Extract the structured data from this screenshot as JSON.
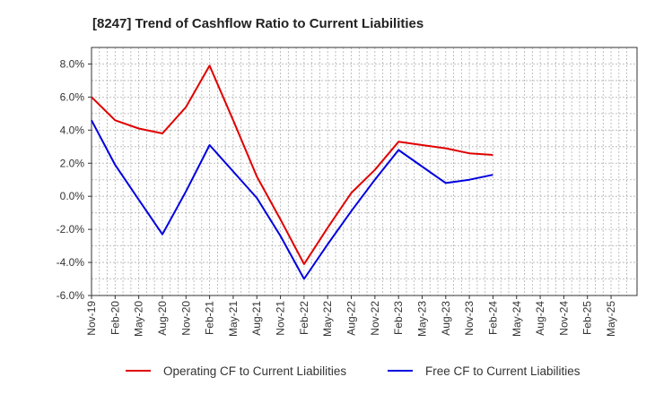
{
  "chart_data": {
    "type": "line",
    "title": "[8247]  Trend of Cashflow Ratio to Current Liabilities",
    "xlabel": "",
    "ylabel": "",
    "categories": [
      "Nov-19",
      "Feb-20",
      "May-20",
      "Aug-20",
      "Nov-20",
      "Feb-21",
      "May-21",
      "Aug-21",
      "Nov-21",
      "Feb-22",
      "May-22",
      "Aug-22",
      "Nov-22",
      "Feb-23",
      "May-23",
      "Aug-23",
      "Nov-23",
      "Feb-24",
      "May-24",
      "Aug-24",
      "Nov-24",
      "Feb-25",
      "May-25"
    ],
    "y_ticks": [
      "8.0%",
      "6.0%",
      "4.0%",
      "2.0%",
      "0.0%",
      "-2.0%",
      "-4.0%",
      "-6.0%"
    ],
    "y_tick_values": [
      8,
      6,
      4,
      2,
      0,
      -2,
      -4,
      -6
    ],
    "ylim": [
      -6,
      9
    ],
    "grid": true,
    "legend_position": "bottom",
    "series": [
      {
        "name": "Operating CF to Current Liabilities",
        "color": "#e00000",
        "values": [
          6.0,
          4.6,
          4.1,
          3.8,
          5.4,
          7.9,
          4.6,
          1.2,
          -1.4,
          -4.1,
          -1.9,
          0.2,
          1.6,
          3.3,
          3.1,
          2.9,
          2.6,
          2.5,
          null,
          null,
          null,
          null,
          null
        ]
      },
      {
        "name": "Free CF to Current Liabilities",
        "color": "#0000e0",
        "values": [
          4.6,
          1.9,
          -0.2,
          -2.3,
          0.3,
          3.1,
          1.5,
          -0.1,
          -2.4,
          -5.0,
          -2.9,
          -0.9,
          1.0,
          2.8,
          1.8,
          0.8,
          1.0,
          1.3,
          null,
          null,
          null,
          null,
          null
        ]
      }
    ]
  }
}
